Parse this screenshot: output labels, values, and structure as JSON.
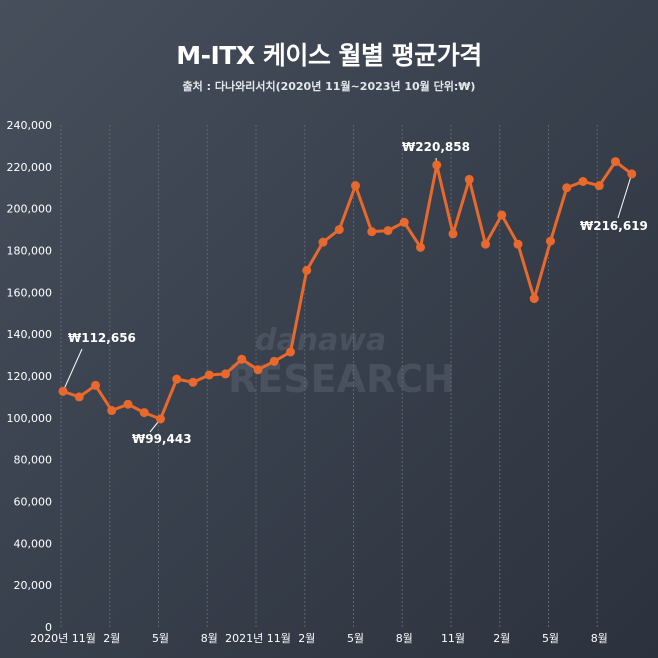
{
  "title": "M-ITX 케이스 월별 평균가격",
  "subtitle": "출처 : 다나와리서치(2020년 11월~2023년 10월 단위:₩)",
  "watermark": {
    "line1": "danawa",
    "line2": "RESEARCH"
  },
  "chart_data": {
    "type": "line",
    "title": "M-ITX 케이스 월별 평균가격",
    "ylim": [
      0,
      240000
    ],
    "y_ticks": [
      0,
      20000,
      40000,
      60000,
      80000,
      100000,
      120000,
      140000,
      160000,
      180000,
      200000,
      220000,
      240000
    ],
    "y_tick_labels": [
      "0",
      "20,000",
      "40,000",
      "60,000",
      "80,000",
      "100,000",
      "120,000",
      "140,000",
      "160,000",
      "180,000",
      "200,000",
      "220,000",
      "240,000"
    ],
    "x_labels": [
      {
        "index": 0,
        "label": "2020년 11월"
      },
      {
        "index": 3,
        "label": "2월"
      },
      {
        "index": 6,
        "label": "5월"
      },
      {
        "index": 9,
        "label": "8월"
      },
      {
        "index": 12,
        "label": "2021년 11월"
      },
      {
        "index": 15,
        "label": "2월"
      },
      {
        "index": 18,
        "label": "5월"
      },
      {
        "index": 21,
        "label": "8월"
      },
      {
        "index": 24,
        "label": "11월"
      },
      {
        "index": 27,
        "label": "2월"
      },
      {
        "index": 30,
        "label": "5월"
      },
      {
        "index": 33,
        "label": "8월"
      }
    ],
    "grid": "vertical",
    "series": [
      {
        "color": "#e8692b",
        "values": [
          112656,
          110000,
          115500,
          103500,
          106500,
          102500,
          99443,
          118500,
          117000,
          120500,
          121000,
          128000,
          123000,
          127000,
          131500,
          170500,
          184000,
          190000,
          211000,
          189000,
          189500,
          193500,
          181500,
          220858,
          188000,
          214000,
          183000,
          197000,
          183000,
          157000,
          184500,
          210000,
          213000,
          211000,
          222500,
          216619
        ]
      }
    ],
    "annotations": [
      {
        "index": 0,
        "text": "₩112,656"
      },
      {
        "index": 6,
        "text": "₩99,443"
      },
      {
        "index": 23,
        "text": "₩220,858"
      },
      {
        "index": 35,
        "text": "₩216,619"
      }
    ]
  }
}
